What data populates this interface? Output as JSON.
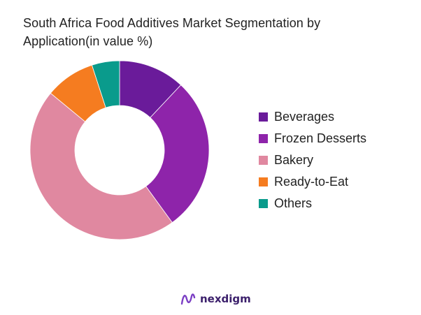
{
  "title_lines": [
    "South Africa Food Additives Market Segmentation by",
    "Application(in value %)"
  ],
  "brand": "nexdigm",
  "chart_data": {
    "type": "pie",
    "variant": "donut",
    "title": "South Africa Food Additives Market Segmentation by Application(in value %)",
    "legend_position": "right",
    "categories": [
      "Beverages",
      "Frozen Desserts",
      "Bakery",
      "Ready-to-Eat",
      "Others"
    ],
    "values": [
      12,
      28,
      46,
      9,
      5
    ],
    "colors": [
      "#6a1b9a",
      "#8e24aa",
      "#e088a0",
      "#f57c20",
      "#0a9b8c"
    ]
  }
}
